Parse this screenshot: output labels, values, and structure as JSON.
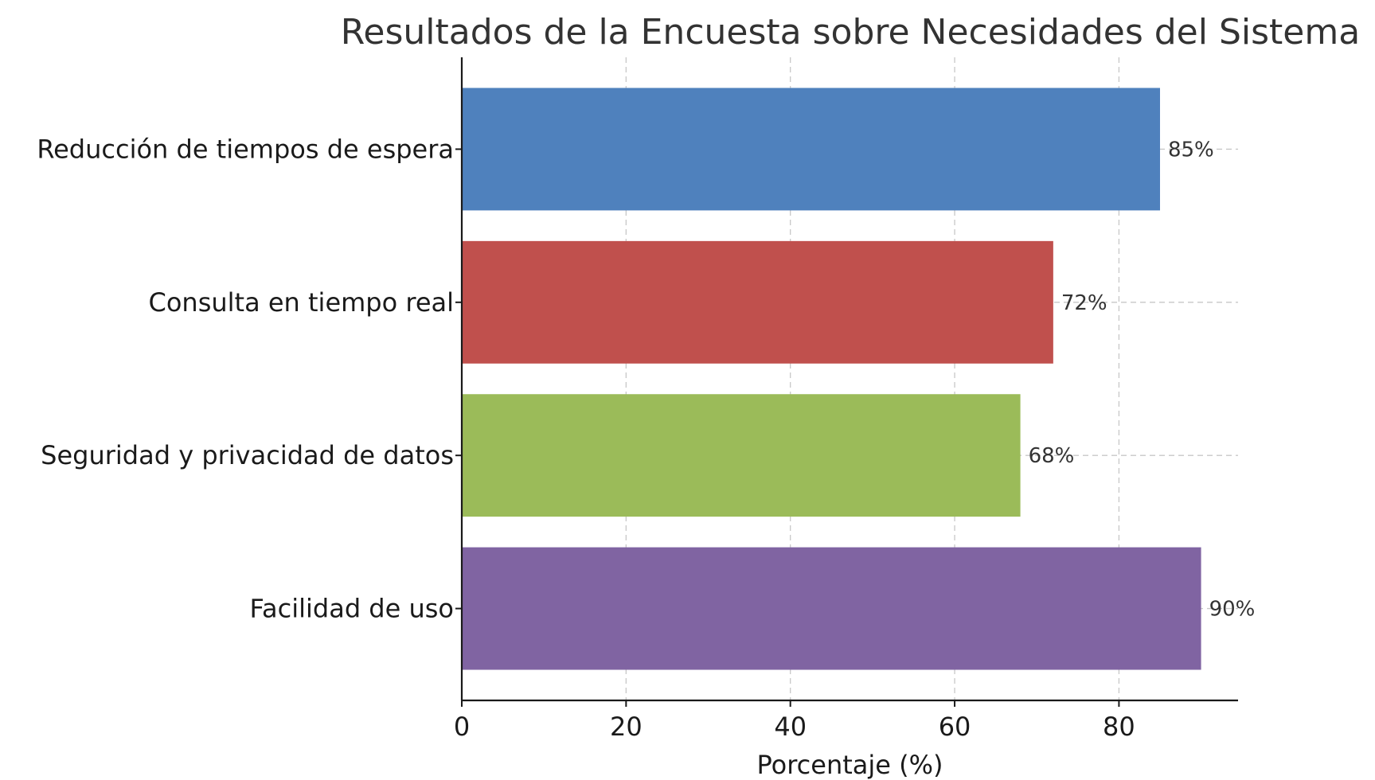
{
  "chart_data": {
    "type": "bar",
    "orientation": "horizontal",
    "title": "Resultados de la Encuesta sobre Necesidades del Sistema",
    "xlabel": "Porcentaje (%)",
    "ylabel": "",
    "categories": [
      "Reducción de tiempos de espera",
      "Consulta en tiempo real",
      "Seguridad y privacidad de datos",
      "Facilidad de uso"
    ],
    "values": [
      85,
      72,
      68,
      90
    ],
    "value_labels": [
      "85%",
      "72%",
      "68%",
      "90%"
    ],
    "colors": [
      "#4f81bd",
      "#c0504d",
      "#9bbb59",
      "#8064a2"
    ],
    "xlim": [
      0,
      94.5
    ],
    "xticks": [
      0,
      20,
      40,
      60,
      80
    ],
    "xtick_labels": [
      "0",
      "20",
      "40",
      "60",
      "80"
    ],
    "grid": true,
    "legend": "none"
  }
}
